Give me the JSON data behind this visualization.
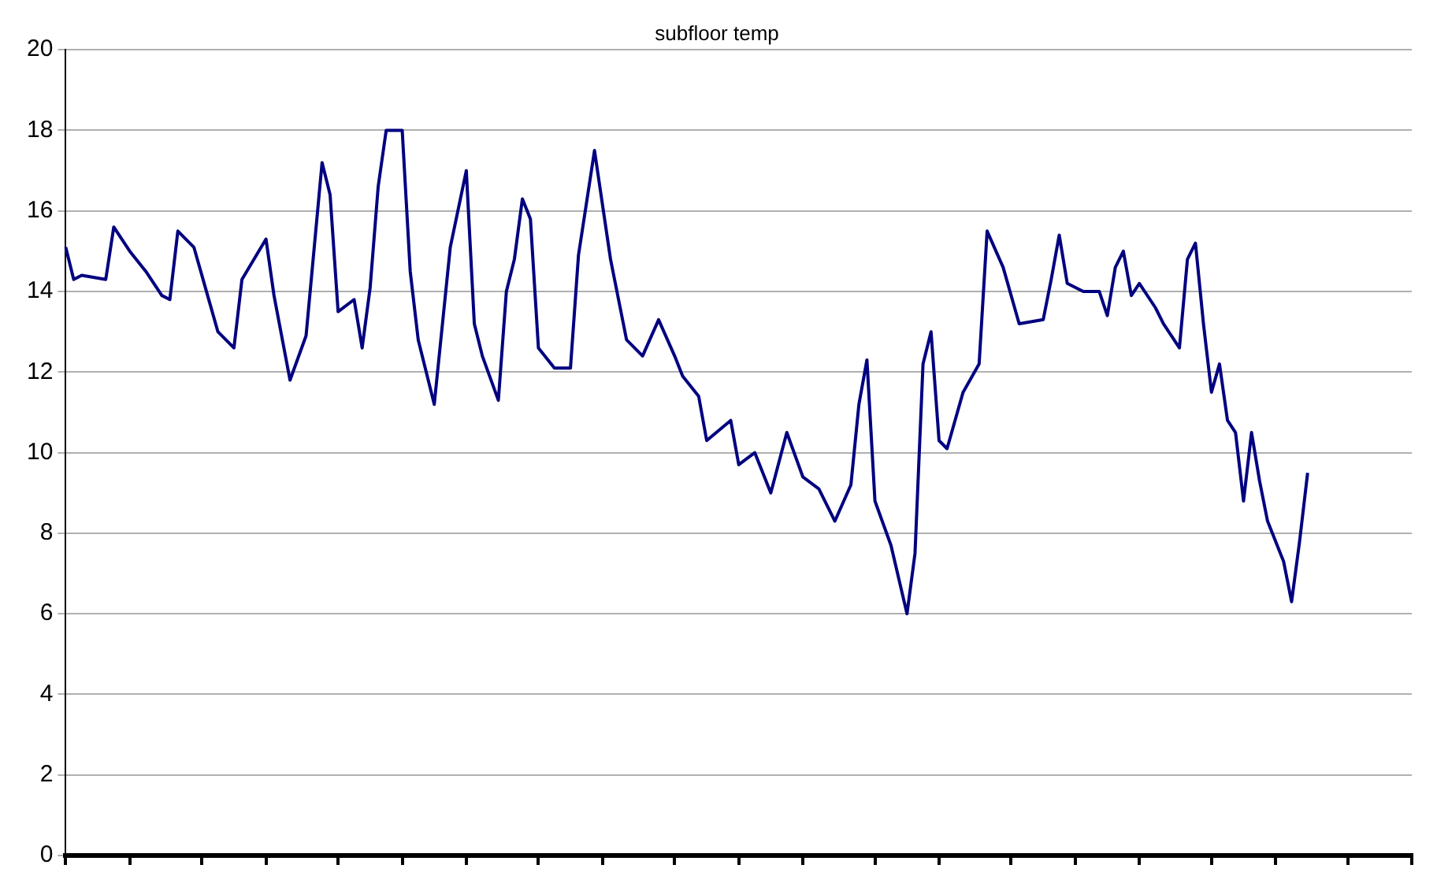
{
  "chart_data": {
    "type": "line",
    "title": "subfloor temp",
    "categories": [
      null,
      null,
      null,
      null,
      null,
      null,
      null,
      null,
      null,
      null,
      null,
      null,
      null,
      null,
      null,
      null,
      null,
      null,
      null,
      null,
      null,
      null,
      null,
      null,
      null,
      null,
      null,
      null,
      null,
      null,
      null,
      null,
      null,
      null,
      null,
      null,
      null,
      null,
      null,
      null,
      null,
      null,
      null,
      null,
      null,
      null,
      null,
      null,
      null,
      null,
      null,
      null,
      null,
      null,
      null,
      null,
      null,
      null,
      null,
      null,
      null,
      null,
      null,
      null,
      null,
      null,
      null,
      null,
      null,
      null,
      null,
      null,
      null,
      null,
      null,
      null,
      null,
      null,
      null,
      null,
      null,
      null,
      null,
      null,
      null,
      null,
      null,
      null,
      null,
      null,
      null,
      null,
      null,
      null,
      null,
      null,
      null,
      null,
      null,
      null,
      null,
      null,
      null,
      null,
      null,
      null,
      null,
      null,
      null,
      null,
      null,
      null,
      null,
      null,
      null,
      null,
      null,
      null,
      null,
      null,
      null,
      null,
      null,
      null,
      null,
      null,
      null,
      null,
      null,
      null,
      null,
      null,
      null,
      null,
      null,
      null,
      null,
      null,
      null,
      null,
      null,
      null,
      null,
      null,
      null,
      null,
      null,
      null,
      null,
      null,
      null,
      null,
      null,
      null,
      null,
      null,
      null,
      null,
      null,
      null,
      null,
      null,
      null,
      null,
      null,
      null,
      null,
      null,
      null
    ],
    "series": [
      {
        "color": "#000080",
        "values": [
          15.1,
          14.3,
          14.4,
          null,
          null,
          14.3,
          15.6,
          null,
          15.0,
          null,
          14.5,
          null,
          13.9,
          13.8,
          15.5,
          null,
          15.1,
          null,
          13.7,
          13.0,
          null,
          12.6,
          14.3,
          null,
          null,
          15.3,
          13.9,
          null,
          11.8,
          null,
          12.9,
          null,
          17.2,
          16.4,
          13.5,
          null,
          13.8,
          12.6,
          14.1,
          16.6,
          18.0,
          null,
          18.0,
          14.5,
          12.8,
          null,
          11.2,
          null,
          15.1,
          null,
          17.0,
          13.2,
          12.4,
          null,
          11.3,
          14.0,
          14.8,
          16.3,
          15.8,
          12.6,
          null,
          12.1,
          null,
          12.1,
          14.9,
          null,
          17.5,
          null,
          14.8,
          null,
          12.8,
          null,
          12.4,
          null,
          13.3,
          null,
          12.4,
          11.9,
          null,
          11.4,
          10.3,
          null,
          null,
          10.8,
          9.7,
          null,
          10.0,
          null,
          9.0,
          null,
          10.5,
          null,
          9.4,
          null,
          9.1,
          null,
          8.3,
          null,
          9.2,
          11.2,
          12.3,
          8.8,
          null,
          7.7,
          null,
          6.0,
          7.5,
          12.2,
          13.0,
          10.3,
          10.1,
          null,
          11.5,
          null,
          12.2,
          15.5,
          null,
          14.6,
          null,
          13.2,
          null,
          null,
          13.3,
          14.3,
          15.4,
          14.2,
          null,
          14.0,
          null,
          14.0,
          13.4,
          14.6,
          15.0,
          13.9,
          14.2,
          null,
          13.6,
          13.2,
          null,
          12.6,
          14.8,
          15.2,
          13.2,
          11.5,
          12.2,
          10.8,
          10.5,
          8.8,
          10.5,
          9.3,
          8.3,
          null,
          7.3,
          6.3,
          7.8,
          9.5,
          null,
          null,
          null,
          null,
          null,
          null,
          null,
          null,
          null,
          null,
          null,
          null,
          null
        ]
      }
    ],
    "ylim": [
      0,
      20
    ],
    "yticks": [
      0,
      2,
      4,
      6,
      8,
      10,
      12,
      14,
      16,
      18,
      20
    ],
    "grid": "y",
    "legend": false,
    "marker": "none",
    "line_style": "solid",
    "tick_labels": "y"
  }
}
